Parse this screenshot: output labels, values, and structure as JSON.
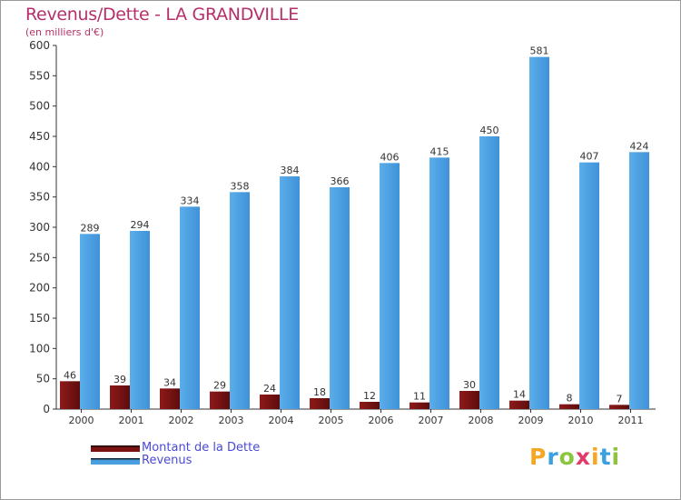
{
  "header": {
    "title": "Revenus/Dette - LA GRANDVILLE",
    "subtitle": "(en milliers d'€)"
  },
  "colors": {
    "title": "#b5306a",
    "dette": "#7a1212",
    "revenus": "#4a9fe0",
    "legend_text": "#4a4ad8"
  },
  "chart_data": {
    "type": "bar",
    "title": "Revenus/Dette - LA GRANDVILLE",
    "subtitle": "(en milliers d'€)",
    "xlabel": "",
    "ylabel": "",
    "categories": [
      "2000",
      "2001",
      "2002",
      "2003",
      "2004",
      "2005",
      "2006",
      "2007",
      "2008",
      "2009",
      "2010",
      "2011"
    ],
    "series": [
      {
        "name": "Montant de la Dette",
        "color": "#7a1212",
        "values": [
          46,
          39,
          34,
          29,
          24,
          18,
          12,
          11,
          30,
          14,
          8,
          7
        ]
      },
      {
        "name": "Revenus",
        "color": "#4a9fe0",
        "values": [
          289,
          294,
          334,
          358,
          384,
          366,
          406,
          415,
          450,
          581,
          407,
          424
        ]
      }
    ],
    "ylim": [
      0,
      600
    ],
    "yticks": [
      0,
      50,
      100,
      150,
      200,
      250,
      300,
      350,
      400,
      450,
      500,
      550,
      600
    ],
    "grid": false,
    "legend_position": "bottom-left",
    "data_labels": true
  },
  "legend": {
    "items": [
      {
        "label": "Montant de la Dette",
        "color": "#7a1212"
      },
      {
        "label": "Revenus",
        "color": "#4a9fe0"
      }
    ]
  },
  "logo": {
    "letters": [
      "P",
      "r",
      "o",
      "x",
      "i",
      "t",
      "i"
    ],
    "colors": [
      "#f5a623",
      "#3aa0e0",
      "#8bc53f",
      "#e23b6a",
      "#f5a623",
      "#3aa0e0",
      "#8bc53f"
    ]
  }
}
